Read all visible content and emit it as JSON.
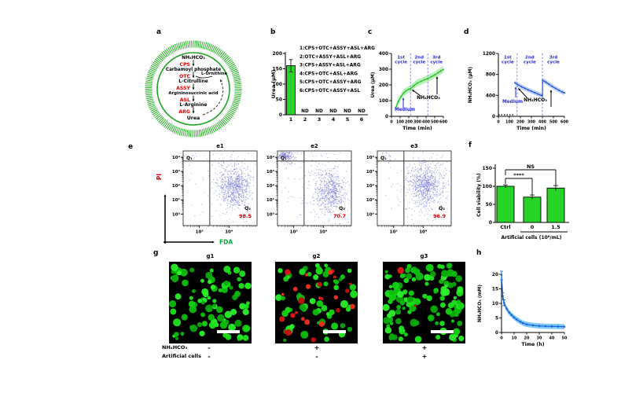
{
  "labels": {
    "a": "a",
    "b": "b",
    "c": "c",
    "d": "d",
    "e": "e",
    "f": "f",
    "g": "g",
    "h": "h"
  },
  "panel_a": {
    "membrane_color": "#25b325",
    "enzyme_color": "#e60000",
    "species": [
      "NH₄HCO₃",
      "Carbamoyl phosphate",
      "L-Citrulline",
      "Argininosuccinic acid",
      "L-Arginine",
      "Urea"
    ],
    "enzymes": [
      "CPS",
      "OTC",
      "ASSY",
      "ASL",
      "ARG"
    ],
    "side_species": "L-Ornithine"
  },
  "chart_data": [
    {
      "id": "b",
      "type": "bar",
      "ylabel": "Urea (μM)",
      "ylim": [
        0,
        200
      ],
      "yticks": [
        0,
        50,
        100,
        150,
        200
      ],
      "categories": [
        "1",
        "2",
        "3",
        "4",
        "5",
        "6"
      ],
      "values": [
        160,
        null,
        null,
        null,
        null,
        null
      ],
      "errors": [
        20,
        null,
        null,
        null,
        null,
        null
      ],
      "nd_label": "ND",
      "legend": [
        "1:CPS+OTC+ASSY+ASL+ARG",
        "2:OTC+ASSY+ASL+ARG",
        "3:CPS+ASSY+ASL+ARG",
        "4:CPS+OTC+ASL+ARG",
        "5:CPS+OTC+ASSY+ARG",
        "6:CPS+OTC+ASSY+ASL"
      ],
      "bar_color": "#29d429"
    },
    {
      "id": "c",
      "type": "line",
      "xlabel": "Time (min)",
      "ylabel": "Urea (μM)",
      "xlim": [
        0,
        600
      ],
      "ylim": [
        0,
        400
      ],
      "xticks": [
        0,
        100,
        200,
        300,
        400,
        500,
        600
      ],
      "yticks": [
        0,
        100,
        200,
        300,
        400
      ],
      "x": [
        50,
        80,
        110,
        140,
        170,
        200,
        220,
        260,
        300,
        340,
        380,
        420,
        460,
        500,
        540,
        570,
        600
      ],
      "y": [
        55,
        95,
        125,
        148,
        163,
        172,
        176,
        195,
        212,
        222,
        232,
        240,
        252,
        263,
        278,
        288,
        298
      ],
      "band": 22,
      "line_color": "#1fbf1f",
      "band_color": "rgba(60,210,60,0.35)",
      "cycle_lines": [
        220,
        420
      ],
      "cycle_labels": [
        {
          "x": 110,
          "text": "1st cycle"
        },
        {
          "x": 320,
          "text": "2nd cycle"
        },
        {
          "x": 520,
          "text": "3rd cycle"
        }
      ],
      "cycle_color": "#2626cf",
      "dash_color": "#8472ec",
      "annotations": {
        "medium": "Medium",
        "nh4": "NH₄HCO₃"
      }
    },
    {
      "id": "d",
      "type": "line",
      "xlabel": "Time (min)",
      "ylabel": "NH₄HCO₃ (μM)",
      "xlim": [
        0,
        600
      ],
      "ylim": [
        0,
        1200
      ],
      "xticks": [
        0,
        100,
        200,
        300,
        400,
        500,
        600
      ],
      "yticks": [
        0,
        400,
        800,
        1200
      ],
      "x": [
        150,
        180,
        210,
        240,
        270,
        300,
        330,
        360,
        390,
        400,
        402,
        430,
        460,
        490,
        520,
        550,
        580,
        600
      ],
      "y": [
        640,
        600,
        565,
        535,
        505,
        478,
        452,
        426,
        400,
        396,
        690,
        655,
        612,
        570,
        532,
        497,
        465,
        448
      ],
      "band": 45,
      "line_color": "#2150d8",
      "band_color": "rgba(70,130,235,0.35)",
      "baseline": {
        "x": [
          0,
          140
        ],
        "y": 30
      },
      "cycle_lines": [
        170,
        400
      ],
      "cycle_labels": [
        {
          "x": 85,
          "text": "1st cycle"
        },
        {
          "x": 285,
          "text": "2nd cycle"
        },
        {
          "x": 500,
          "text": "3rd cycle"
        }
      ],
      "cycle_color": "#2626cf",
      "dash_color": "#8472ec",
      "annotations": {
        "medium": "Medium",
        "nh4": "NH₄HCO₃"
      }
    },
    {
      "id": "e",
      "type": "scatter",
      "x_axis": "FDA",
      "y_axis": "PI",
      "x_color": "#00a838",
      "y_color": "#dd0000",
      "yticks": [
        "10⁴",
        "10³",
        "10²",
        "10¹",
        "10⁰"
      ],
      "xticks": [
        "10³",
        "10⁴"
      ],
      "dot_color": "#6a6ad2",
      "plots": [
        {
          "title": "e1",
          "q1_label": "Q₁",
          "q3_label": "Q₃",
          "q3_value": "98.5",
          "seed": 101,
          "clusters": [
            {
              "fx": 0.7,
              "fy": 0.5,
              "sx": 0.1,
              "sy": 0.13,
              "n": 520
            },
            {
              "fx": 0.72,
              "fy": 0.44,
              "sx": 0.16,
              "sy": 0.22,
              "n": 240
            },
            {
              "fx": 0.55,
              "fy": 0.5,
              "sx": 0.3,
              "sy": 0.3,
              "n": 70
            },
            {
              "fx": 0.12,
              "fy": 0.06,
              "sx": 0.06,
              "sy": 0.03,
              "n": 10
            }
          ]
        },
        {
          "title": "e2",
          "q1_label": "Q₁",
          "q3_label": "Q₃",
          "q3_value": "70.7",
          "seed": 202,
          "clusters": [
            {
              "fx": 0.72,
              "fy": 0.57,
              "sx": 0.09,
              "sy": 0.12,
              "n": 430
            },
            {
              "fx": 0.7,
              "fy": 0.5,
              "sx": 0.15,
              "sy": 0.2,
              "n": 190
            },
            {
              "fx": 0.1,
              "fy": 0.055,
              "sx": 0.05,
              "sy": 0.035,
              "n": 150
            },
            {
              "fx": 0.13,
              "fy": 0.09,
              "sx": 0.09,
              "sy": 0.06,
              "n": 60
            },
            {
              "fx": 0.5,
              "fy": 0.42,
              "sx": 0.3,
              "sy": 0.3,
              "n": 80
            }
          ]
        },
        {
          "title": "e3",
          "q1_label": "Q₁",
          "q3_label": "Q₃",
          "q3_value": "96.9",
          "seed": 303,
          "clusters": [
            {
              "fx": 0.66,
              "fy": 0.47,
              "sx": 0.1,
              "sy": 0.13,
              "n": 520
            },
            {
              "fx": 0.68,
              "fy": 0.41,
              "sx": 0.16,
              "sy": 0.2,
              "n": 240
            },
            {
              "fx": 0.5,
              "fy": 0.45,
              "sx": 0.3,
              "sy": 0.3,
              "n": 80
            },
            {
              "fx": 0.12,
              "fy": 0.07,
              "sx": 0.07,
              "sy": 0.05,
              "n": 18
            }
          ]
        }
      ]
    },
    {
      "id": "f",
      "type": "bar",
      "ylabel": "Cell viability (%)",
      "xlabel": "Artificial cells (10⁶/mL)",
      "ylim": [
        0,
        150
      ],
      "yticks": [
        0,
        50,
        100,
        150
      ],
      "categories": [
        "Ctrl",
        "0",
        "1.5"
      ],
      "values": [
        100,
        70,
        95
      ],
      "errors": [
        4,
        6,
        7
      ],
      "bar_color": "#29d429",
      "sig": [
        {
          "label": "****",
          "from": 0,
          "to": 1
        },
        {
          "label": "NS",
          "from": 0,
          "to": 2
        }
      ]
    },
    {
      "id": "h",
      "type": "line",
      "xlabel": "Time (h)",
      "ylabel": "NH₄HCO₃ (mM)",
      "xlim": [
        0,
        50
      ],
      "ylim": [
        0,
        20
      ],
      "xticks": [
        0,
        10,
        20,
        30,
        40,
        50
      ],
      "yticks": [
        0,
        5,
        10,
        15,
        20
      ],
      "x": [
        0,
        1,
        2,
        4,
        6,
        8,
        10,
        12,
        15,
        17,
        20,
        25,
        30,
        35,
        40,
        45,
        50
      ],
      "y": [
        19.8,
        12.5,
        10.2,
        8.2,
        6.9,
        6.0,
        5.2,
        4.5,
        3.7,
        3.2,
        2.8,
        2.45,
        2.25,
        2.15,
        2.1,
        2.05,
        2.0
      ],
      "band": 0.9,
      "errors0": [
        1.7,
        1.2,
        1.0
      ],
      "line_color": "#1560d4",
      "band_color": "#7ec8f8"
    }
  ],
  "panel_g": {
    "plots": [
      {
        "title": "g1",
        "green": 92,
        "red": 0,
        "seed": 7
      },
      {
        "title": "g2",
        "green": 60,
        "red": 26,
        "seed": 11
      },
      {
        "title": "g3",
        "green": 118,
        "red": 2,
        "seed": 13
      }
    ],
    "rows": [
      {
        "label": "NH₄HCO₃",
        "signs": [
          "-",
          "+",
          "+"
        ]
      },
      {
        "label": "Artificial cells",
        "signs": [
          "-",
          "-",
          "+"
        ]
      }
    ]
  }
}
